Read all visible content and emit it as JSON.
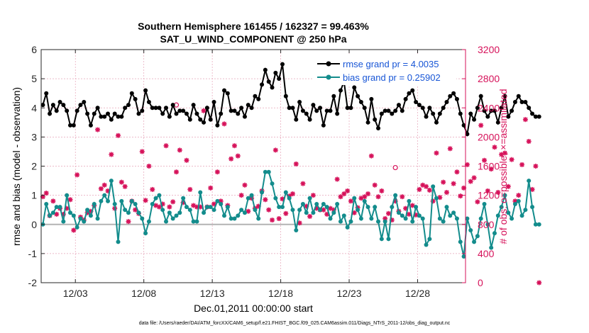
{
  "chart_data": {
    "type": "line",
    "title_line1": "Southern Hemisphere 161455 / 162327 = 99.463%",
    "title_line2": "SAT_U_WIND_COMPONENT @ 250 hPa",
    "xlabel": "Dec.01,2011 00:00:00 start",
    "ylabel_left": "rmse and bias (model - observation)",
    "ylabel_right": "# of obs: o=possible; ×=assimilated",
    "xlim": [
      0.0,
      31.0
    ],
    "ylim_left": [
      -2,
      6
    ],
    "ylim_right": [
      0,
      3200
    ],
    "x_ticks": [
      {
        "pos": 2.5,
        "label": "12/03"
      },
      {
        "pos": 7.5,
        "label": "12/08"
      },
      {
        "pos": 12.5,
        "label": "12/13"
      },
      {
        "pos": 17.5,
        "label": "12/18"
      },
      {
        "pos": 22.5,
        "label": "12/23"
      },
      {
        "pos": 27.5,
        "label": "12/28"
      }
    ],
    "y_ticks_left": [
      -2,
      -1,
      0,
      1,
      2,
      3,
      4,
      5,
      6
    ],
    "y_ticks_right": [
      0,
      400,
      800,
      1200,
      1600,
      2000,
      2400,
      2800,
      3200
    ],
    "colors": {
      "rmse": "#000000",
      "bias": "#138c8c",
      "obs": "#d6125a",
      "zero_line": "#b3b3b3",
      "right_axis": "#d6125a"
    },
    "series": [
      {
        "name": "rmse grand pr = 4.0035",
        "key": "rmse",
        "x_start": 0.125,
        "x_step": 0.25,
        "values": [
          4.1,
          4.5,
          3.8,
          4.1,
          3.9,
          4.2,
          4.1,
          3.9,
          3.4,
          3.4,
          3.9,
          4.1,
          4.2,
          3.8,
          3.4,
          3.8,
          4.0,
          3.7,
          3.7,
          3.8,
          3.6,
          3.8,
          3.7,
          3.7,
          4.0,
          4.1,
          4.5,
          4.3,
          3.8,
          3.9,
          4.6,
          4.2,
          4.0,
          4.0,
          4.0,
          3.8,
          4.0,
          3.7,
          4.1,
          3.8,
          3.9,
          3.9,
          3.8,
          3.6,
          4.1,
          3.8,
          3.6,
          3.5,
          4.0,
          3.6,
          4.2,
          3.4,
          3.8,
          4.6,
          4.5,
          3.9,
          3.9,
          3.8,
          4.0,
          3.7,
          4.1,
          4.0,
          4.4,
          4.3,
          4.8,
          5.3,
          4.9,
          4.7,
          5.2,
          5.0,
          5.5,
          4.4,
          4.0,
          4.0,
          3.6,
          4.2,
          3.9,
          3.8,
          3.6,
          4.1,
          3.9,
          4.0,
          3.4,
          3.9,
          3.9,
          4.4,
          3.8,
          4.6,
          4.9,
          4.0,
          4.0,
          4.7,
          4.4,
          4.2,
          4.0,
          3.5,
          4.3,
          3.6,
          3.3,
          3.8,
          3.9,
          3.9,
          3.8,
          3.9,
          4.1,
          3.9,
          4.3,
          4.5,
          4.6,
          4.2,
          4.1,
          4.0,
          3.7,
          4.0,
          3.8,
          3.5,
          3.8,
          4.0,
          4.2,
          4.4,
          4.5,
          4.3,
          3.8,
          3.4,
          3.1,
          3.8,
          3.6,
          4.0,
          4.4,
          3.9,
          3.7,
          3.9,
          3.9,
          3.5,
          4.0,
          4.4,
          3.7,
          3.9,
          4.2,
          4.4,
          4.2,
          4.2,
          4.0,
          3.8,
          3.7,
          3.7
        ]
      },
      {
        "name": "bias grand pr = 0.25902",
        "key": "bias",
        "x_start": 0.125,
        "x_step": 0.25,
        "values": [
          0.0,
          0.7,
          0.3,
          0.4,
          0.6,
          0.6,
          0.1,
          1.0,
          0.4,
          0.3,
          -0.1,
          0.2,
          0.1,
          0.5,
          0.3,
          0.7,
          0.2,
          0.8,
          1.0,
          0.8,
          1.5,
          0.7,
          -0.6,
          0.8,
          0.5,
          0.4,
          0.8,
          0.7,
          0.4,
          0.2,
          -0.3,
          0.1,
          0.7,
          0.9,
          1.0,
          0.5,
          0.1,
          0.4,
          0.2,
          0.3,
          0.4,
          0.9,
          0.6,
          0.5,
          0.1,
          0.1,
          1.1,
          0.4,
          0.6,
          0.6,
          0.5,
          0.8,
          0.7,
          0.3,
          0.6,
          0.2,
          0.2,
          0.3,
          0.5,
          0.4,
          0.9,
          1.0,
          0.5,
          0.2,
          1.1,
          1.8,
          1.8,
          1.4,
          0.9,
          0.6,
          0.6,
          1.1,
          0.9,
          0.5,
          -0.2,
          0.5,
          0.7,
          0.4,
          0.9,
          0.4,
          0.7,
          0.5,
          0.7,
          0.6,
          0.2,
          0.4,
          0.7,
          0.1,
          0.3,
          -0.1,
          0.1,
          0.9,
          0.5,
          0.2,
          0.8,
          0.6,
          0.2,
          0.6,
          0.1,
          -0.5,
          0.1,
          -0.5,
          0.6,
          1.0,
          0.4,
          0.3,
          0.2,
          0.8,
          0.1,
          0.6,
          0.3,
          0.2,
          -0.7,
          -0.5,
          1.3,
          0.9,
          0.2,
          0.1,
          0.6,
          0.3,
          0.4,
          0.2,
          -0.6,
          -1.1,
          0.2,
          -0.2,
          -0.6,
          -0.4,
          0.2,
          0.7,
          0.0,
          -0.8,
          -0.3,
          0.3,
          0.6,
          1.0,
          0.4,
          0.2,
          0.7,
          0.8,
          0.3,
          0.5,
          1.5,
          0.6,
          0.0,
          0.0
        ]
      },
      {
        "name": "obs",
        "key": "obs",
        "axis": "right",
        "x_start": 0.125,
        "x_step": 0.25,
        "values": [
          1180,
          1230,
          920,
          1120,
          940,
          1020,
          940,
          1020,
          1140,
          720,
          1480,
          900,
          860,
          960,
          980,
          1060,
          2100,
          1290,
          1340,
          1260,
          1760,
          1020,
          2020,
          1380,
          1320,
          840,
          1120,
          1000,
          950,
          1800,
          1130,
          1600,
          1280,
          1060,
          1040,
          1080,
          1880,
          1040,
          1110,
          1520,
          1820,
          1100,
          1680,
          1280,
          1060,
          1040,
          1040,
          2360,
          1040,
          1300,
          1080,
          1520,
          1120,
          2180,
          1060,
          1700,
          1880,
          1740,
          1200,
          1340,
          980,
          1160,
          1020,
          1050,
          1260,
          1140,
          1000,
          860,
          1820,
          880,
          1150,
          950,
          1190,
          1220,
          1630,
          820,
          1360,
          1050,
          910,
          1200,
          1020,
          1000,
          1000,
          940,
          1020,
          1000,
          1420,
          1180,
          1220,
          1260,
          1120,
          960,
          1030,
          1160,
          1180,
          1220,
          1740,
          1340,
          1180,
          1260,
          880,
          950,
          860,
          1120,
          980,
          1180,
          1020,
          940,
          1060,
          930,
          1280,
          1340,
          1320,
          1270,
          1120,
          1780,
          1170,
          1380,
          1240,
          1840,
          1360,
          1520,
          1190,
          1300,
          1620,
          1390,
          1440,
          1110,
          2160,
          1680,
          1260,
          1560,
          1860,
          1240,
          1760,
          1780,
          1320,
          1690,
          1120,
          1200,
          1620,
          2240,
          1940,
          1280,
          1600,
          0
        ]
      }
    ],
    "possible_markers": [
      {
        "x": 9.875,
        "y": 2440
      },
      {
        "x": 25.875,
        "y": 1580
      }
    ]
  },
  "footnote": "data file: /Users/raeder/DAI/ATM_forcXX/CAM6_setup/f.e21.FHIST_BGC.f09_025.CAM6assim.011/Diags_NTrS_2011-12/obs_diag_output.nc"
}
